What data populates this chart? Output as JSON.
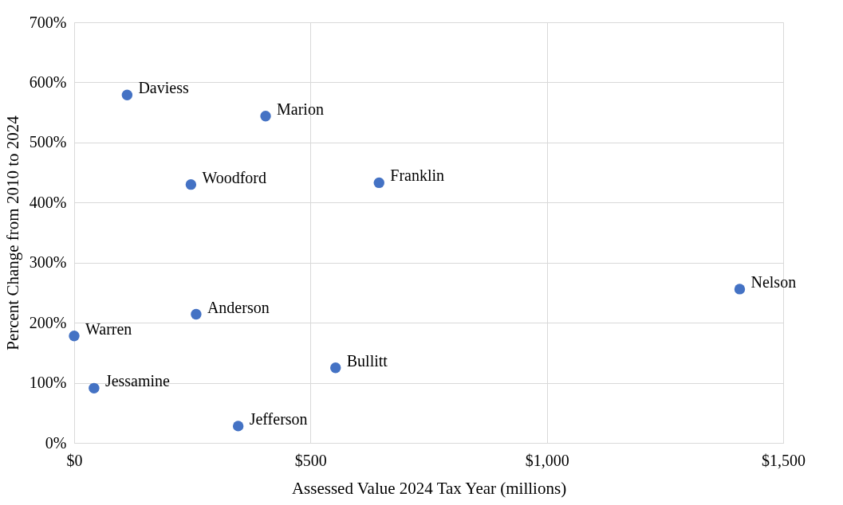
{
  "chart_data": {
    "type": "scatter",
    "xlabel": "Assessed Value 2024 Tax Year (millions)",
    "ylabel": "Percent Change from 2010 to 2024",
    "x": [
      112,
      405,
      247,
      645,
      1408,
      258,
      0,
      553,
      42,
      347
    ],
    "series": [
      {
        "color": "#4472c4",
        "values": [
          579,
          544,
          430,
          433,
          256,
          214,
          178,
          125,
          91,
          28
        ]
      }
    ],
    "annotations": [
      {
        "text": "Daviess",
        "x": 112,
        "y": 579
      },
      {
        "text": "Marion",
        "x": 405,
        "y": 544
      },
      {
        "text": "Woodford",
        "x": 247,
        "y": 430
      },
      {
        "text": "Franklin",
        "x": 645,
        "y": 433
      },
      {
        "text": "Nelson",
        "x": 1408,
        "y": 256
      },
      {
        "text": "Anderson",
        "x": 258,
        "y": 214
      },
      {
        "text": "Warren",
        "x": 0,
        "y": 178
      },
      {
        "text": "Bullitt",
        "x": 553,
        "y": 125
      },
      {
        "text": "Jessamine",
        "x": 42,
        "y": 91
      },
      {
        "text": "Jefferson",
        "x": 347,
        "y": 28
      }
    ],
    "xlim": [
      0,
      1500
    ],
    "xticks": [
      {
        "value": 0,
        "label": "$0"
      },
      {
        "value": 500,
        "label": "$500"
      },
      {
        "value": 1000,
        "label": "$1,000"
      },
      {
        "value": 1500,
        "label": "$1,500"
      }
    ],
    "ylim": [
      0,
      700
    ],
    "yticks": [
      {
        "value": 0,
        "label": "0%"
      },
      {
        "value": 100,
        "label": "100%"
      },
      {
        "value": 200,
        "label": "200%"
      },
      {
        "value": 300,
        "label": "300%"
      },
      {
        "value": 400,
        "label": "400%"
      },
      {
        "value": 500,
        "label": "500%"
      },
      {
        "value": 600,
        "label": "600%"
      },
      {
        "value": 700,
        "label": "700%"
      }
    ],
    "grid": true,
    "marker": "circle"
  }
}
